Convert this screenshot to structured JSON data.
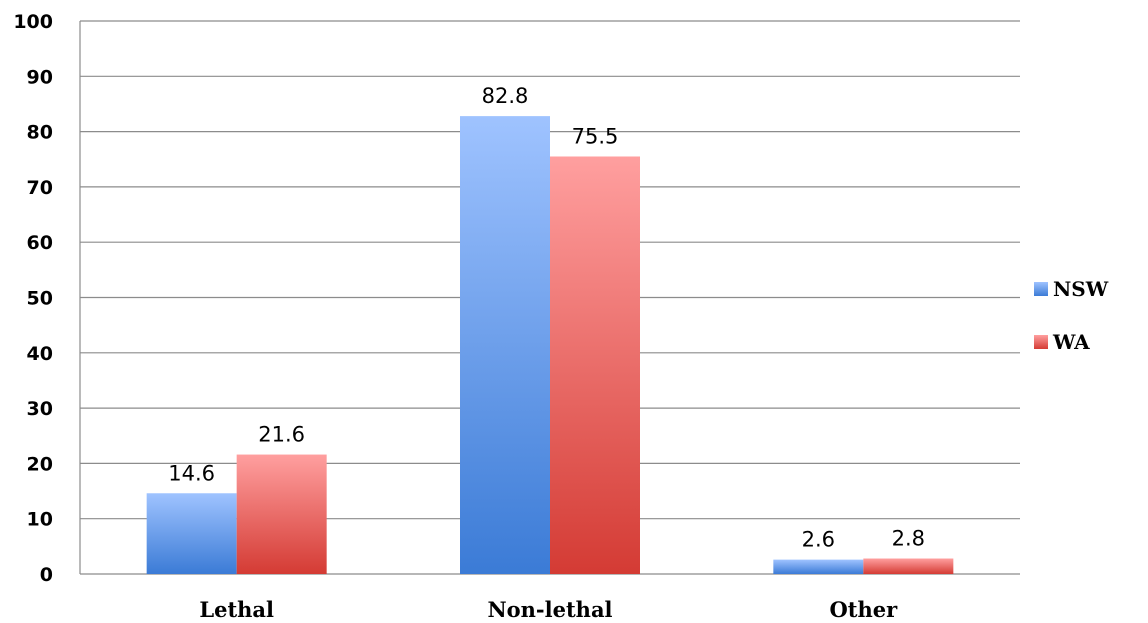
{
  "chart_data": {
    "type": "bar",
    "title": "",
    "xlabel": "",
    "ylabel": "",
    "categories": [
      "Lethal",
      "Non-lethal",
      "Other"
    ],
    "series": [
      {
        "name": "NSW",
        "values": [
          14.6,
          82.8,
          2.6
        ],
        "labels": [
          "14.6",
          "82.8",
          "2.6"
        ],
        "color_top": "#9fc3ff",
        "color_bottom": "#3b7bd6"
      },
      {
        "name": "WA",
        "values": [
          21.6,
          75.5,
          2.8
        ],
        "labels": [
          "21.6",
          "75.5",
          "2.8"
        ],
        "color_top": "#ff9f9f",
        "color_bottom": "#d43b34"
      }
    ],
    "ylim": [
      0,
      100
    ],
    "yticks": [
      "0",
      "10",
      "20",
      "30",
      "40",
      "50",
      "60",
      "70",
      "80",
      "90",
      "100"
    ],
    "grid": true,
    "legend_position": "right"
  }
}
